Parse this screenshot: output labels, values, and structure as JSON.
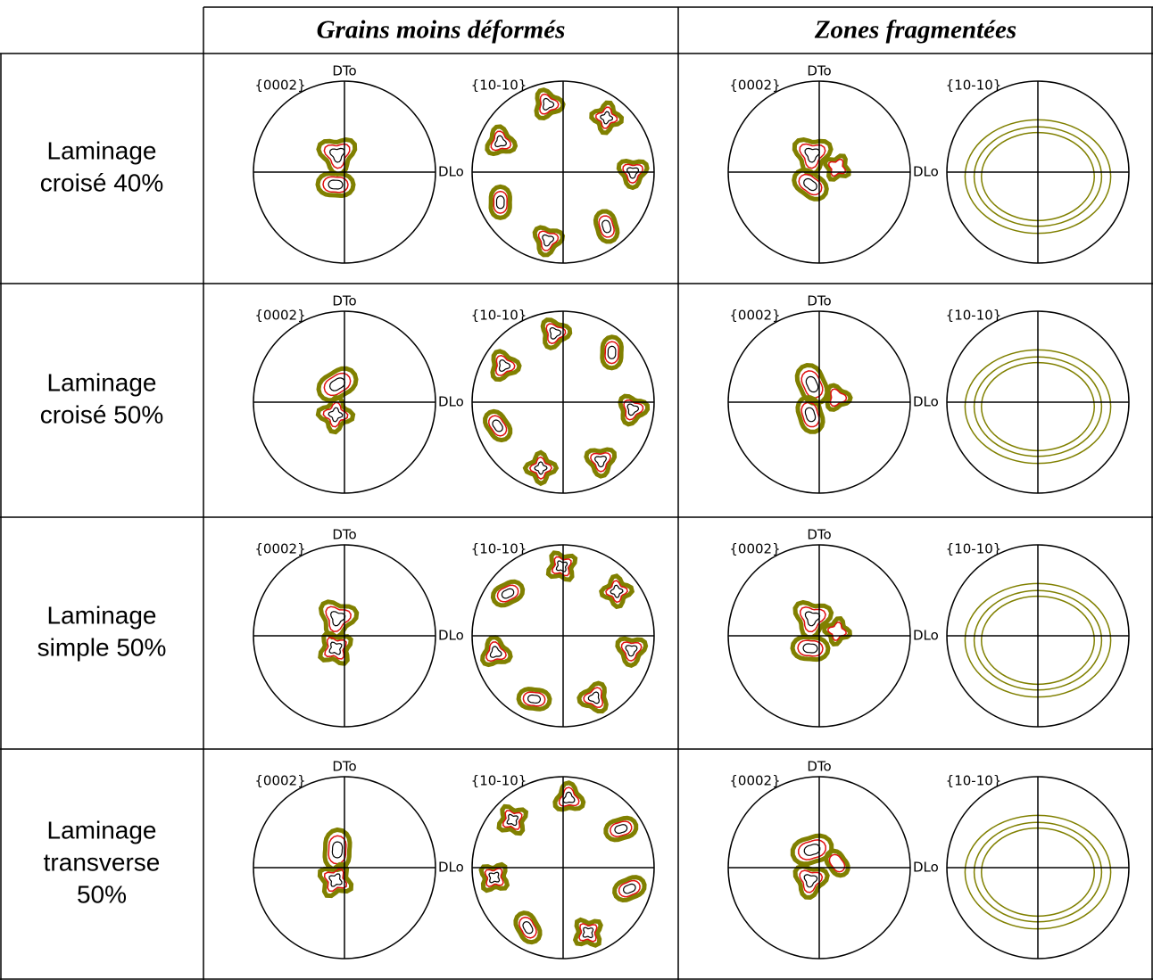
{
  "table": {
    "header": [
      "Grains moins déformés",
      "Zones fragmentées"
    ],
    "rows": [
      {
        "label": [
          "Laminage",
          "croisé 40%"
        ],
        "cells": [
          {
            "figures": [
              {
                "plane": "{0002}",
                "dt": "DTo",
                "dl": "DLo"
              },
              {
                "plane": "{10-10}"
              }
            ]
          },
          {
            "figures": [
              {
                "plane": "{0002}",
                "dt": "DTo",
                "dl": "DLo"
              },
              {
                "plane": "{10-10}"
              }
            ]
          }
        ]
      },
      {
        "label": [
          "Laminage",
          "croisé 50%"
        ],
        "cells": [
          {
            "figures": [
              {
                "plane": "{0002}",
                "dt": "DTo",
                "dl": "DLo"
              },
              {
                "plane": "{10-10}"
              }
            ]
          },
          {
            "figures": [
              {
                "plane": "{0002}",
                "dt": "DTo",
                "dl": "DLo"
              },
              {
                "plane": "{10-10}"
              }
            ]
          }
        ]
      },
      {
        "label": [
          "Laminage",
          "simple 50%"
        ],
        "cells": [
          {
            "figures": [
              {
                "plane": "{0002}",
                "dt": "DTo",
                "dl": "DLo"
              },
              {
                "plane": "{10-10}"
              }
            ]
          },
          {
            "figures": [
              {
                "plane": "{0002}",
                "dt": "DTo",
                "dl": "DLo"
              },
              {
                "plane": "{10-10}"
              }
            ]
          }
        ]
      },
      {
        "label": [
          "Laminage",
          "transverse",
          "50%"
        ],
        "cells": [
          {
            "figures": [
              {
                "plane": "{0002}",
                "dt": "DTo",
                "dl": "DLo"
              },
              {
                "plane": "{10-10}"
              }
            ]
          },
          {
            "figures": [
              {
                "plane": "{0002}",
                "dt": "DTo",
                "dl": "DLo"
              },
              {
                "plane": "{10-10}"
              }
            ]
          }
        ]
      }
    ]
  }
}
